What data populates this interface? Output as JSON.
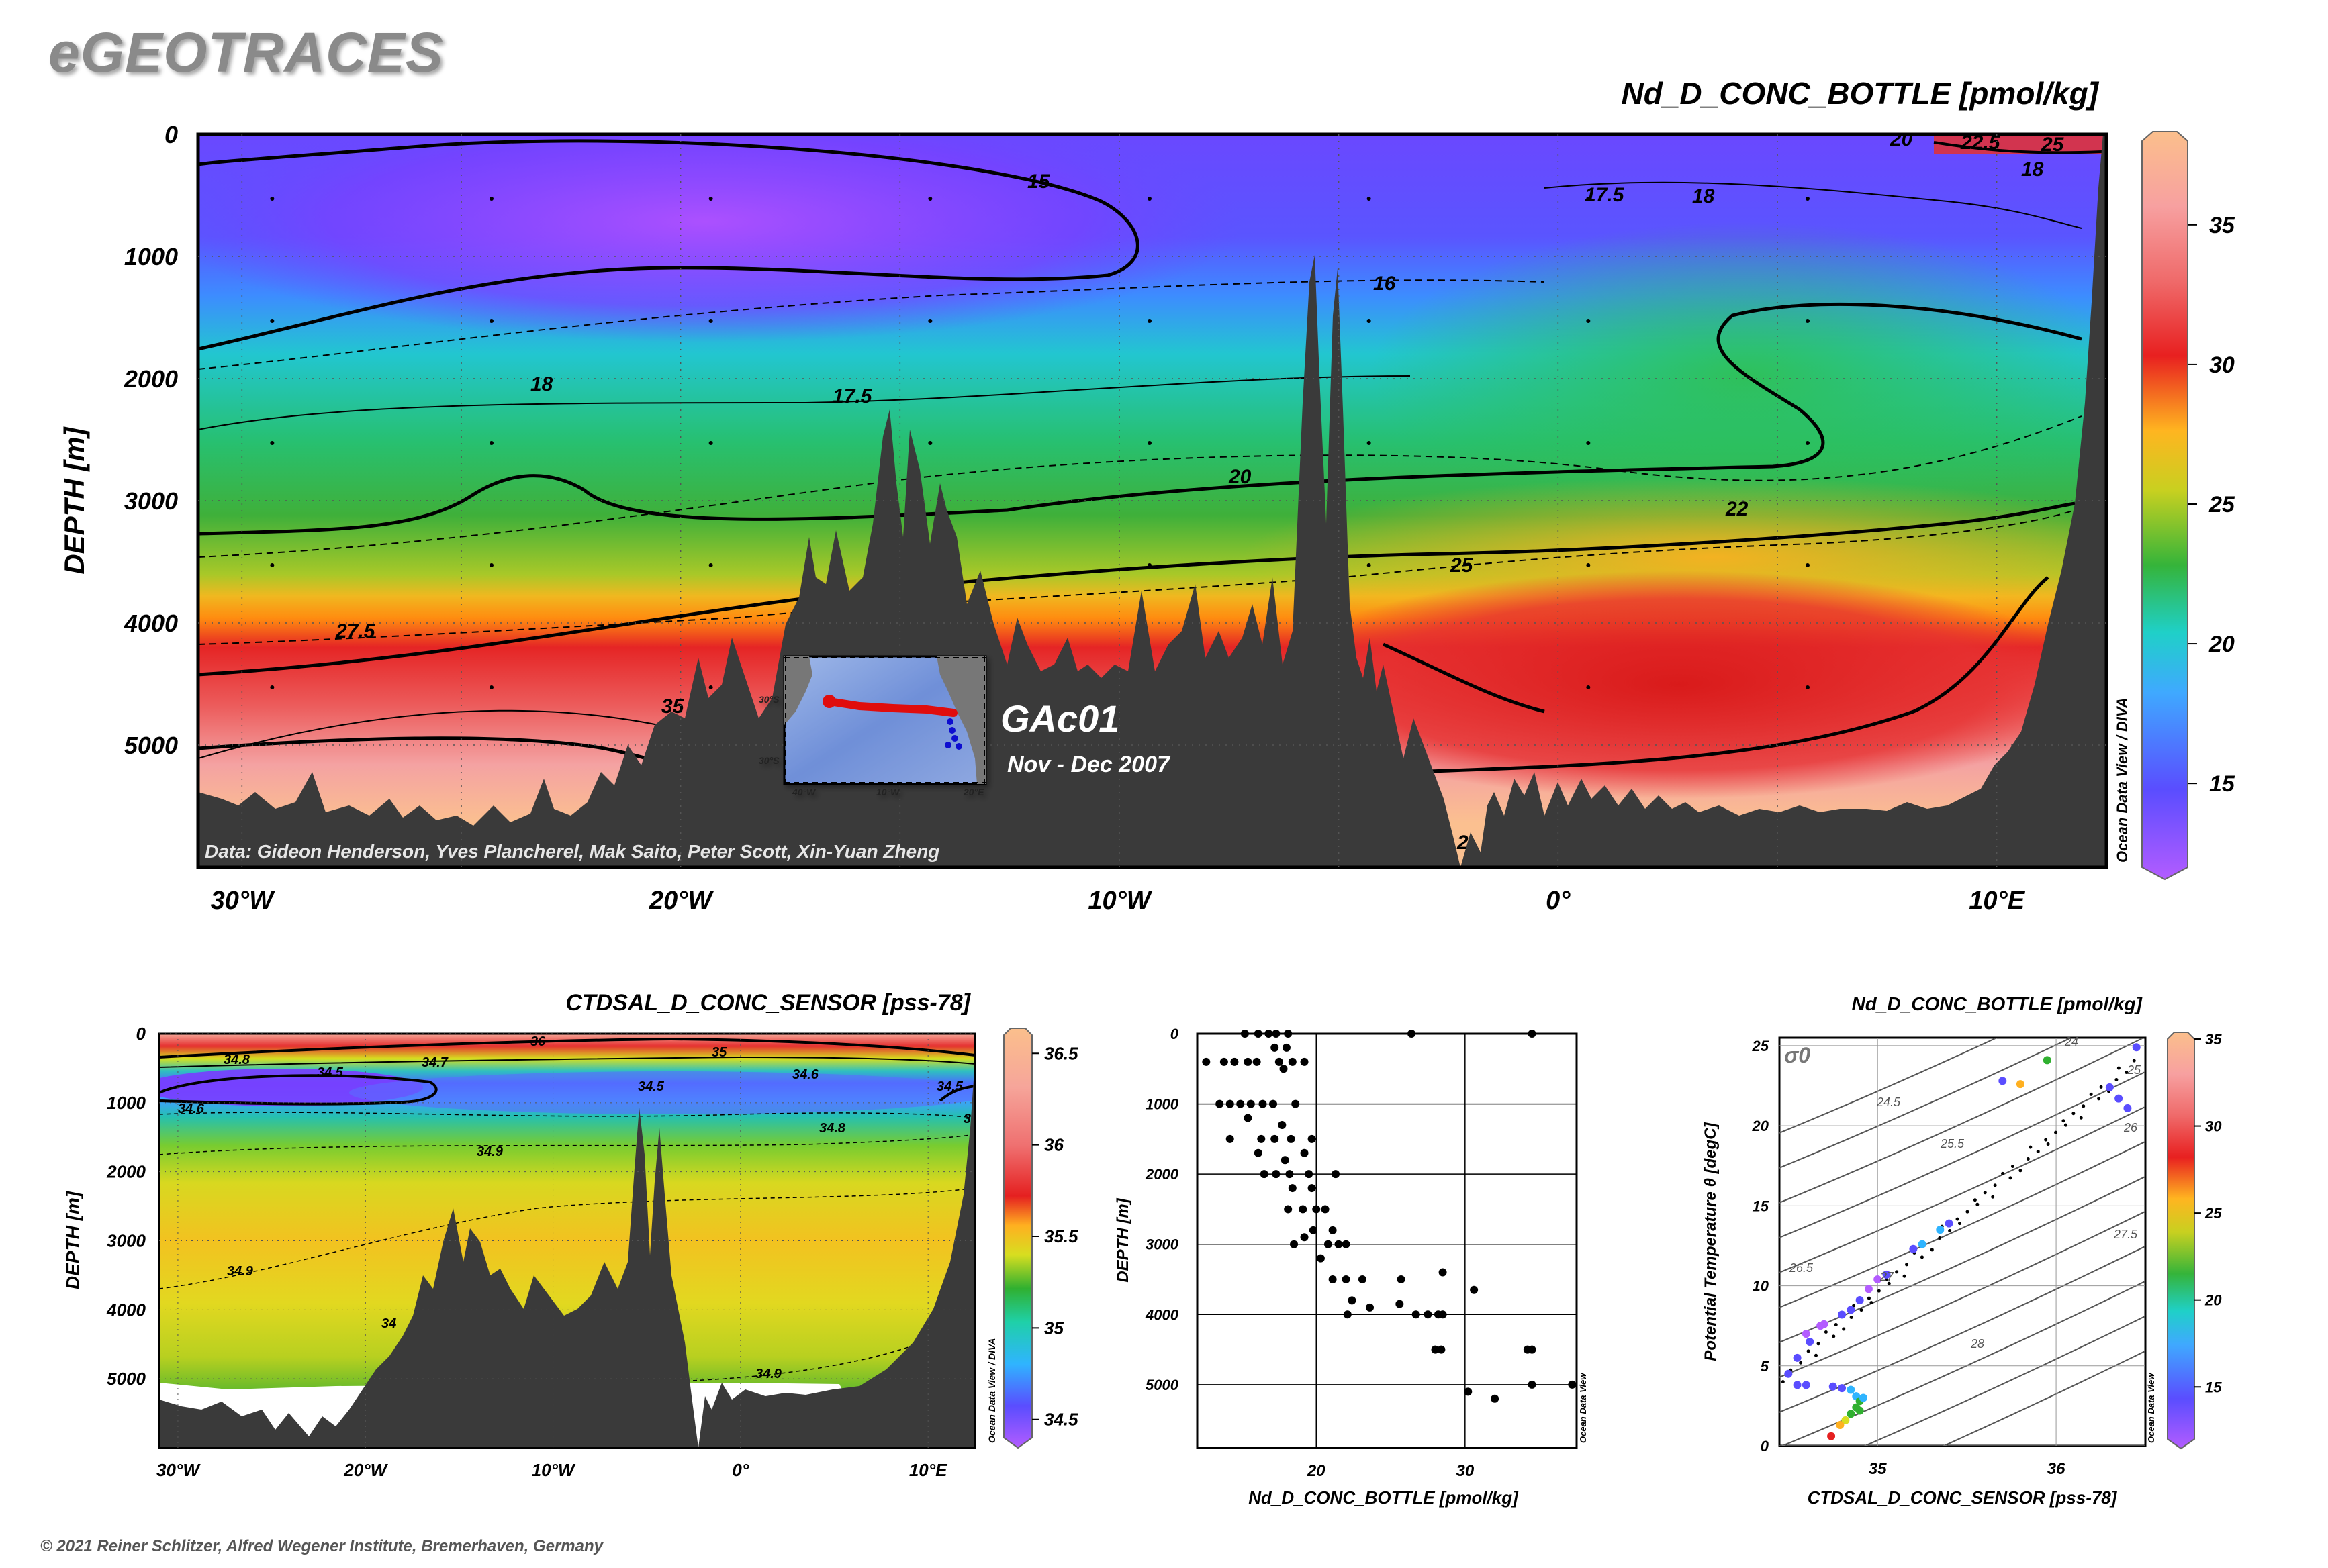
{
  "header": {
    "brand": "eGEOTRACES",
    "copyright": "© 2021 Reiner Schlitzer, Alfred Wegener Institute, Bremerhaven, Germany"
  },
  "colors": {
    "land": "#3a3a3a",
    "contour": "#000000"
  },
  "chart_data": [
    {
      "type": "heatmap",
      "id": "main-section",
      "title": "Nd_D_CONC_BOTTLE [pmol/kg]",
      "ylabel": "DEPTH [m]",
      "xlabel": "",
      "x_ticks": [
        "30°W",
        "20°W",
        "10°W",
        "0°",
        "10°E"
      ],
      "y_ticks": [
        "0",
        "1000",
        "2000",
        "3000",
        "4000",
        "5000"
      ],
      "xlim": [
        -31,
        12.5
      ],
      "ylim": [
        6000,
        0
      ],
      "colorbar": {
        "ticks": [
          "15",
          "20",
          "25",
          "30",
          "35"
        ],
        "range": [
          12,
          38
        ]
      },
      "contour_labels": [
        "15",
        "16",
        "17.5",
        "18",
        "17.5",
        "18",
        "20",
        "22",
        "25",
        "27.5",
        "35",
        "20",
        "22.5",
        "25",
        "18",
        "2"
      ],
      "credit": "Data: Gideon Henderson, Yves Plancherel, Mak Saito, Peter Scott, Xin-Yuan Zheng",
      "watermark": "Ocean Data View / DIVA",
      "cruise": {
        "name": "GAc01",
        "dates": "Nov - Dec 2007",
        "map_ticks_x": [
          "40°W",
          "10°W",
          "20°E"
        ],
        "map_ticks_y": [
          "30°S"
        ]
      }
    },
    {
      "type": "heatmap",
      "id": "salinity-section",
      "title": "CTDSAL_D_CONC_SENSOR [pss-78]",
      "ylabel": "DEPTH [m]",
      "x_ticks": [
        "30°W",
        "20°W",
        "10°W",
        "0°",
        "10°E"
      ],
      "y_ticks": [
        "0",
        "1000",
        "2000",
        "3000",
        "4000",
        "5000"
      ],
      "colorbar": {
        "ticks": [
          "34.5",
          "35",
          "35.5",
          "36",
          "36.5"
        ],
        "range": [
          34.4,
          36.6
        ]
      },
      "contour_labels": [
        "36",
        "34.8",
        "34.7",
        "35",
        "34.5",
        "34.6",
        "34.5",
        "34.5",
        "34.6",
        "34.8",
        "34.9",
        "34.9",
        "34",
        "34.9",
        "3"
      ],
      "watermark": "Ocean Data View / DIVA"
    },
    {
      "type": "scatter",
      "id": "profile",
      "xlabel": "Nd_D_CONC_BOTTLE [pmol/kg]",
      "ylabel": "DEPTH [m]",
      "x_ticks": [
        "20",
        "30"
      ],
      "y_ticks": [
        "0",
        "1000",
        "2000",
        "3000",
        "4000",
        "5000"
      ],
      "xlim": [
        12,
        37.5
      ],
      "ylim": [
        5900,
        0
      ],
      "watermark": "Ocean Data View",
      "points": [
        [
          15.2,
          0
        ],
        [
          16.1,
          0
        ],
        [
          16.8,
          0
        ],
        [
          17.3,
          0
        ],
        [
          18.1,
          0
        ],
        [
          26.4,
          0
        ],
        [
          34.5,
          0
        ],
        [
          12.6,
          400
        ],
        [
          13.8,
          400
        ],
        [
          14.5,
          400
        ],
        [
          15.4,
          400
        ],
        [
          16.0,
          400
        ],
        [
          17.5,
          400
        ],
        [
          18.4,
          400
        ],
        [
          19.2,
          400
        ],
        [
          17.2,
          200
        ],
        [
          18.0,
          200
        ],
        [
          17.8,
          500
        ],
        [
          13.5,
          1000
        ],
        [
          14.2,
          1000
        ],
        [
          14.9,
          1000
        ],
        [
          15.6,
          1000
        ],
        [
          16.4,
          1000
        ],
        [
          17.1,
          1000
        ],
        [
          18.6,
          1000
        ],
        [
          15.4,
          1200
        ],
        [
          17.7,
          1300
        ],
        [
          16.3,
          1500
        ],
        [
          17.2,
          1500
        ],
        [
          18.3,
          1500
        ],
        [
          19.7,
          1500
        ],
        [
          14.2,
          1500
        ],
        [
          16.1,
          1700
        ],
        [
          17.9,
          1800
        ],
        [
          19.2,
          1700
        ],
        [
          16.5,
          2000
        ],
        [
          17.3,
          2000
        ],
        [
          18.2,
          2000
        ],
        [
          19.5,
          2000
        ],
        [
          21.3,
          2000
        ],
        [
          18.4,
          2200
        ],
        [
          19.7,
          2200
        ],
        [
          18.1,
          2500
        ],
        [
          19.1,
          2500
        ],
        [
          20.0,
          2500
        ],
        [
          20.6,
          2500
        ],
        [
          19.2,
          2900
        ],
        [
          19.8,
          2800
        ],
        [
          21.1,
          2800
        ],
        [
          20.8,
          3000
        ],
        [
          21.5,
          3000
        ],
        [
          22.0,
          3000
        ],
        [
          18.5,
          3000
        ],
        [
          20.3,
          3200
        ],
        [
          21.1,
          3500
        ],
        [
          22.0,
          3500
        ],
        [
          23.1,
          3500
        ],
        [
          25.7,
          3500
        ],
        [
          28.5,
          3400
        ],
        [
          30.6,
          3650
        ],
        [
          22.4,
          3800
        ],
        [
          22.1,
          4000
        ],
        [
          23.6,
          3900
        ],
        [
          25.6,
          3850
        ],
        [
          26.7,
          4000
        ],
        [
          27.5,
          4000
        ],
        [
          28.2,
          4000
        ],
        [
          28.5,
          4000
        ],
        [
          28.0,
          4500
        ],
        [
          28.4,
          4500
        ],
        [
          34.2,
          4500
        ],
        [
          34.5,
          4500
        ],
        [
          30.2,
          5100
        ],
        [
          32.0,
          5200
        ],
        [
          34.5,
          5000
        ],
        [
          37.2,
          5000
        ]
      ]
    },
    {
      "type": "scatter",
      "id": "ts-diagram",
      "title": "Nd_D_CONC_BOTTLE [pmol/kg]",
      "xlabel": "CTDSAL_D_CONC_SENSOR [pss-78]",
      "ylabel": "Potential Temperature θ [degC]",
      "x_ticks": [
        "35",
        "36"
      ],
      "y_ticks": [
        "0",
        "5",
        "10",
        "15",
        "20",
        "25"
      ],
      "xlim": [
        34.45,
        36.5
      ],
      "ylim": [
        0,
        25.5
      ],
      "sigma_label": "σ0",
      "isopycnal_labels": [
        "24",
        "24.5",
        "25",
        "25.5",
        "26",
        "26.5",
        "27",
        "27.5",
        "28"
      ],
      "colorbar": {
        "ticks": [
          "15",
          "20",
          "25",
          "30",
          "35"
        ],
        "range": [
          12,
          35
        ]
      },
      "watermark": "Ocean Data View",
      "points": [
        [
          34.5,
          4.5,
          15
        ],
        [
          34.55,
          5.5,
          16
        ],
        [
          34.62,
          6.5,
          17
        ],
        [
          34.68,
          7.5,
          14
        ],
        [
          34.8,
          8.2,
          15
        ],
        [
          34.9,
          9.1,
          15
        ],
        [
          34.95,
          9.8,
          14
        ],
        [
          35.05,
          10.7,
          15
        ],
        [
          35.2,
          12.3,
          17
        ],
        [
          35.35,
          13.5,
          18
        ],
        [
          35.7,
          22.8,
          15
        ],
        [
          35.8,
          22.6,
          28
        ],
        [
          35.95,
          24.1,
          22
        ],
        [
          36.3,
          22.4,
          16
        ],
        [
          36.35,
          21.7,
          16
        ],
        [
          36.4,
          21.1,
          17
        ],
        [
          36.45,
          24.9,
          15
        ],
        [
          34.55,
          3.8,
          16
        ],
        [
          34.6,
          3.8,
          15
        ],
        [
          34.75,
          3.7,
          16
        ],
        [
          34.8,
          3.6,
          17
        ],
        [
          34.85,
          3.5,
          18
        ],
        [
          34.88,
          3.1,
          19
        ],
        [
          34.9,
          2.8,
          20
        ],
        [
          34.88,
          2.4,
          21
        ],
        [
          34.85,
          2.0,
          22
        ],
        [
          34.82,
          1.6,
          24
        ],
        [
          34.79,
          1.3,
          26
        ],
        [
          34.74,
          0.6,
          30
        ],
        [
          34.9,
          2.2,
          21
        ],
        [
          34.92,
          3.0,
          18
        ],
        [
          34.6,
          7.0,
          14
        ],
        [
          34.7,
          7.6,
          13
        ],
        [
          34.85,
          8.5,
          16
        ],
        [
          35.0,
          10.4,
          14
        ],
        [
          35.25,
          12.6,
          19
        ],
        [
          35.4,
          13.9,
          17
        ]
      ]
    }
  ]
}
